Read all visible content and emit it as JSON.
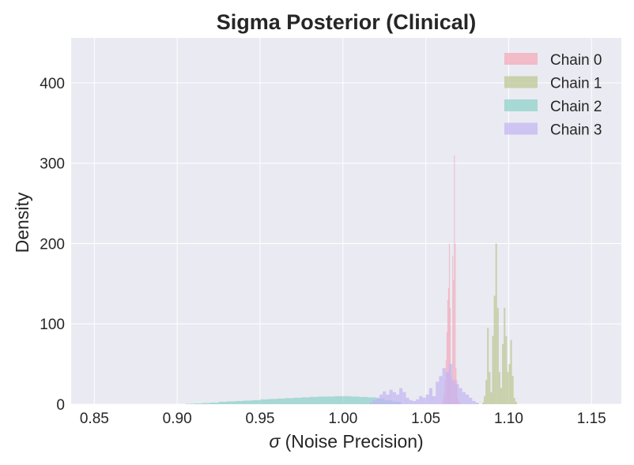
{
  "chart_data": {
    "type": "histogram",
    "title": "Sigma Posterior (Clinical)",
    "xlabel_symbol": "σ",
    "xlabel_text": "(Noise Precision)",
    "ylabel": "Density",
    "xlim": [
      0.836,
      1.168
    ],
    "ylim": [
      0,
      456
    ],
    "xticks": [
      {
        "value": 0.85,
        "label": "0.85"
      },
      {
        "value": 0.9,
        "label": "0.90"
      },
      {
        "value": 0.95,
        "label": "0.95"
      },
      {
        "value": 1.0,
        "label": "1.00"
      },
      {
        "value": 1.05,
        "label": "1.05"
      },
      {
        "value": 1.1,
        "label": "1.10"
      },
      {
        "value": 1.15,
        "label": "1.15"
      }
    ],
    "yticks": [
      {
        "value": 0,
        "label": "0"
      },
      {
        "value": 100,
        "label": "100"
      },
      {
        "value": 200,
        "label": "200"
      },
      {
        "value": 300,
        "label": "300"
      },
      {
        "value": 400,
        "label": "400"
      }
    ],
    "grid": true,
    "legend_position": "top-right",
    "background_color": "#eaeaf2",
    "series": [
      {
        "name": "Chain 0",
        "color": "#f4a6b6",
        "bin_edges": [
          1.06,
          1.0605,
          1.061,
          1.0615,
          1.062,
          1.0625,
          1.063,
          1.0635,
          1.064,
          1.0645,
          1.065,
          1.0655,
          1.066,
          1.0665,
          1.067,
          1.0675,
          1.068,
          1.0685,
          1.069,
          1.0695,
          1.07,
          1.0705,
          1.071
        ],
        "values": [
          3,
          8,
          15,
          30,
          55,
          90,
          130,
          145,
          200,
          120,
          35,
          30,
          185,
          155,
          310,
          200,
          45,
          30,
          8,
          4,
          2,
          1
        ]
      },
      {
        "name": "Chain 1",
        "color": "#b9c68e",
        "bin_edges": [
          1.084,
          1.085,
          1.086,
          1.087,
          1.088,
          1.089,
          1.09,
          1.091,
          1.092,
          1.093,
          1.094,
          1.095,
          1.096,
          1.097,
          1.098,
          1.099,
          1.1,
          1.101,
          1.102,
          1.103,
          1.104,
          1.105
        ],
        "values": [
          2,
          10,
          30,
          95,
          40,
          15,
          85,
          135,
          200,
          120,
          40,
          20,
          75,
          120,
          85,
          40,
          50,
          80,
          35,
          8,
          3
        ]
      },
      {
        "name": "Chain 2",
        "color": "#89d0c8",
        "bin_edges": [
          0.905,
          0.91,
          0.915,
          0.92,
          0.925,
          0.93,
          0.935,
          0.94,
          0.945,
          0.95,
          0.955,
          0.96,
          0.965,
          0.97,
          0.975,
          0.98,
          0.985,
          0.99,
          0.995,
          1.0,
          1.005,
          1.01,
          1.015,
          1.02,
          1.025,
          1.03,
          1.035
        ],
        "values": [
          0.5,
          1,
          1.5,
          2,
          3,
          3.5,
          4,
          4.5,
          5,
          6,
          6.5,
          7,
          7.5,
          8,
          8.5,
          9,
          9.5,
          9.5,
          10,
          10,
          9.5,
          9,
          8.5,
          7,
          5,
          3
        ]
      },
      {
        "name": "Chain 3",
        "color": "#c2b3f2",
        "bin_edges": [
          1.016,
          1.018,
          1.02,
          1.022,
          1.024,
          1.026,
          1.028,
          1.03,
          1.032,
          1.034,
          1.036,
          1.038,
          1.04,
          1.042,
          1.044,
          1.046,
          1.048,
          1.05,
          1.052,
          1.054,
          1.056,
          1.058,
          1.06,
          1.062,
          1.064,
          1.066,
          1.068,
          1.07,
          1.072,
          1.074,
          1.076,
          1.078,
          1.08,
          1.082
        ],
        "values": [
          2,
          5,
          8,
          12,
          16,
          12,
          18,
          15,
          12,
          20,
          15,
          8,
          5,
          4,
          6,
          10,
          8,
          12,
          20,
          10,
          28,
          35,
          45,
          40,
          50,
          30,
          25,
          20,
          15,
          12,
          8,
          4,
          2
        ]
      }
    ]
  }
}
